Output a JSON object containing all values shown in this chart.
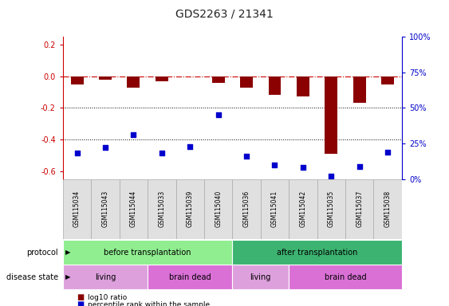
{
  "title": "GDS2263 / 21341",
  "samples": [
    "GSM115034",
    "GSM115043",
    "GSM115044",
    "GSM115033",
    "GSM115039",
    "GSM115040",
    "GSM115036",
    "GSM115041",
    "GSM115042",
    "GSM115035",
    "GSM115037",
    "GSM115038"
  ],
  "log10_ratio": [
    -0.05,
    -0.02,
    -0.07,
    -0.03,
    0.0,
    -0.04,
    -0.07,
    -0.12,
    -0.13,
    -0.49,
    -0.17,
    -0.05
  ],
  "percentile_rank_pct": [
    18,
    22,
    31,
    18,
    23,
    45,
    16,
    10,
    8,
    2,
    9,
    19
  ],
  "ylim_left": [
    -0.65,
    0.25
  ],
  "yticks_left": [
    0.2,
    0.0,
    -0.2,
    -0.4,
    -0.6
  ],
  "yticks_right_pct": [
    100,
    75,
    50,
    25,
    0
  ],
  "protocol_groups": [
    {
      "label": "before transplantation",
      "start": 0,
      "end": 6,
      "color": "#90EE90"
    },
    {
      "label": "after transplantation",
      "start": 6,
      "end": 12,
      "color": "#3CB371"
    }
  ],
  "disease_groups": [
    {
      "label": "living",
      "start": 0,
      "end": 3,
      "color": "#DDA0DD"
    },
    {
      "label": "brain dead",
      "start": 3,
      "end": 6,
      "color": "#DA70D6"
    },
    {
      "label": "living",
      "start": 6,
      "end": 8,
      "color": "#DDA0DD"
    },
    {
      "label": "brain dead",
      "start": 8,
      "end": 12,
      "color": "#DA70D6"
    }
  ],
  "bar_color": "#8B0000",
  "scatter_color": "#0000CC",
  "dashed_line_color": "#CC0000",
  "dotted_line_color": "#000000",
  "right_axis_color": "#0000CC",
  "background_color": "#ffffff",
  "label_log10": "log10 ratio",
  "label_percentile": "percentile rank within the sample",
  "protocol_label": "protocol",
  "disease_label": "disease state",
  "title_fontsize": 10,
  "tick_fontsize": 7,
  "label_fontsize": 7,
  "sample_fontsize": 5.5,
  "group_fontsize": 7
}
